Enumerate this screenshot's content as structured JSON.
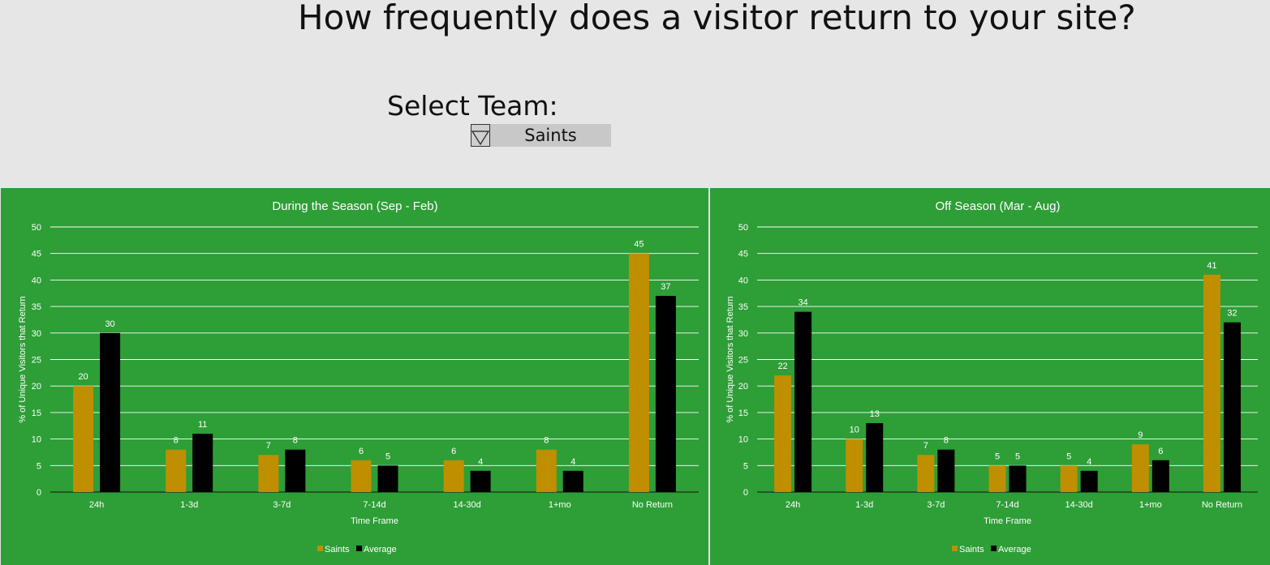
{
  "page": {
    "title": "How frequently does a visitor return to your site?",
    "team_label": "Select Team:",
    "team_selected": "Saints"
  },
  "colors": {
    "background": "#e6e6e6",
    "panel": "#2e9e37",
    "saints": "#bf8f00",
    "average": "#000000",
    "text": "#ffffff"
  },
  "chart_data": [
    {
      "type": "bar",
      "title": "During the Season (Sep - Feb)",
      "xlabel": "Time Frame",
      "ylabel": "% of Unique Visitors that Return",
      "categories": [
        "24h",
        "1-3d",
        "3-7d",
        "7-14d",
        "14-30d",
        "1+mo",
        "No Return"
      ],
      "series": [
        {
          "name": "Saints",
          "values": [
            20,
            8,
            7,
            6,
            6,
            8,
            45
          ],
          "color": "#bf8f00"
        },
        {
          "name": "Average",
          "values": [
            30,
            11,
            8,
            5,
            4,
            4,
            37
          ],
          "color": "#000000"
        }
      ],
      "ylim": [
        0,
        50
      ],
      "yticks": [
        0,
        5,
        10,
        15,
        20,
        25,
        30,
        35,
        40,
        45,
        50
      ],
      "grid": true,
      "legend": "bottom"
    },
    {
      "type": "bar",
      "title": "Off Season (Mar - Aug)",
      "xlabel": "Time Frame",
      "ylabel": "% of Unique Visitors that Return",
      "categories": [
        "24h",
        "1-3d",
        "3-7d",
        "7-14d",
        "14-30d",
        "1+mo",
        "No Return"
      ],
      "series": [
        {
          "name": "Saints",
          "values": [
            22,
            10,
            7,
            5,
            5,
            9,
            41
          ],
          "color": "#bf8f00"
        },
        {
          "name": "Average",
          "values": [
            34,
            13,
            8,
            5,
            4,
            6,
            32
          ],
          "color": "#000000"
        }
      ],
      "ylim": [
        0,
        50
      ],
      "yticks": [
        0,
        5,
        10,
        15,
        20,
        25,
        30,
        35,
        40,
        45,
        50
      ],
      "grid": true,
      "legend": "bottom"
    }
  ]
}
